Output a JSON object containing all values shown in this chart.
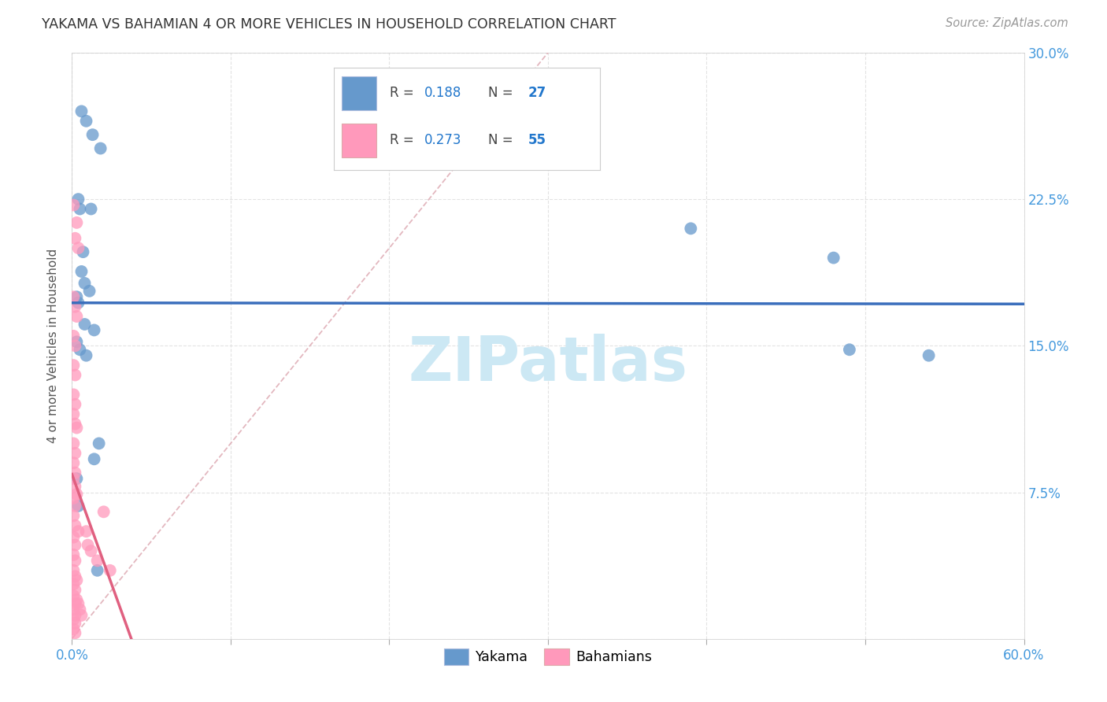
{
  "title": "YAKAMA VS BAHAMIAN 4 OR MORE VEHICLES IN HOUSEHOLD CORRELATION CHART",
  "source": "Source: ZipAtlas.com",
  "ylabel": "4 or more Vehicles in Household",
  "xlim": [
    0.0,
    0.6
  ],
  "ylim": [
    0.0,
    0.3
  ],
  "xticks": [
    0.0,
    0.1,
    0.2,
    0.3,
    0.4,
    0.5,
    0.6
  ],
  "xticklabels": [
    "0.0%",
    "",
    "",
    "",
    "",
    "",
    "60.0%"
  ],
  "yticks": [
    0.0,
    0.075,
    0.15,
    0.225,
    0.3
  ],
  "yticklabels_right": [
    "",
    "7.5%",
    "15.0%",
    "22.5%",
    "30.0%"
  ],
  "yakama_color": "#6699cc",
  "bahamian_color": "#ff99bb",
  "trendline_yakama_color": "#3a6ebc",
  "trendline_bahamian_color": "#e06080",
  "diagonal_color": "#e0b0b8",
  "background_color": "#ffffff",
  "grid_color": "#dddddd",
  "watermark": "ZIPatlas",
  "watermark_color": "#cce8f4",
  "legend_r1": "0.188",
  "legend_n1": "27",
  "legend_r2": "0.273",
  "legend_n2": "55",
  "yakama_points": [
    [
      0.006,
      0.27
    ],
    [
      0.009,
      0.265
    ],
    [
      0.013,
      0.258
    ],
    [
      0.018,
      0.251
    ],
    [
      0.004,
      0.225
    ],
    [
      0.005,
      0.22
    ],
    [
      0.007,
      0.198
    ],
    [
      0.012,
      0.22
    ],
    [
      0.006,
      0.188
    ],
    [
      0.008,
      0.182
    ],
    [
      0.011,
      0.178
    ],
    [
      0.003,
      0.175
    ],
    [
      0.004,
      0.172
    ],
    [
      0.008,
      0.161
    ],
    [
      0.014,
      0.158
    ],
    [
      0.003,
      0.152
    ],
    [
      0.005,
      0.148
    ],
    [
      0.009,
      0.145
    ],
    [
      0.017,
      0.1
    ],
    [
      0.014,
      0.092
    ],
    [
      0.003,
      0.082
    ],
    [
      0.004,
      0.068
    ],
    [
      0.016,
      0.035
    ],
    [
      0.39,
      0.21
    ],
    [
      0.48,
      0.195
    ],
    [
      0.49,
      0.148
    ],
    [
      0.54,
      0.145
    ]
  ],
  "bahamian_points": [
    [
      0.001,
      0.222
    ],
    [
      0.003,
      0.213
    ],
    [
      0.002,
      0.205
    ],
    [
      0.004,
      0.2
    ],
    [
      0.001,
      0.175
    ],
    [
      0.002,
      0.17
    ],
    [
      0.003,
      0.165
    ],
    [
      0.001,
      0.155
    ],
    [
      0.002,
      0.15
    ],
    [
      0.001,
      0.14
    ],
    [
      0.002,
      0.135
    ],
    [
      0.001,
      0.125
    ],
    [
      0.002,
      0.12
    ],
    [
      0.001,
      0.115
    ],
    [
      0.002,
      0.11
    ],
    [
      0.003,
      0.108
    ],
    [
      0.001,
      0.1
    ],
    [
      0.002,
      0.095
    ],
    [
      0.001,
      0.09
    ],
    [
      0.002,
      0.085
    ],
    [
      0.001,
      0.082
    ],
    [
      0.002,
      0.078
    ],
    [
      0.003,
      0.074
    ],
    [
      0.001,
      0.072
    ],
    [
      0.002,
      0.068
    ],
    [
      0.001,
      0.063
    ],
    [
      0.002,
      0.058
    ],
    [
      0.004,
      0.055
    ],
    [
      0.001,
      0.052
    ],
    [
      0.002,
      0.048
    ],
    [
      0.001,
      0.043
    ],
    [
      0.002,
      0.04
    ],
    [
      0.001,
      0.035
    ],
    [
      0.002,
      0.032
    ],
    [
      0.003,
      0.03
    ],
    [
      0.001,
      0.028
    ],
    [
      0.002,
      0.025
    ],
    [
      0.001,
      0.022
    ],
    [
      0.002,
      0.018
    ],
    [
      0.001,
      0.015
    ],
    [
      0.002,
      0.012
    ],
    [
      0.001,
      0.01
    ],
    [
      0.002,
      0.008
    ],
    [
      0.001,
      0.005
    ],
    [
      0.002,
      0.003
    ],
    [
      0.003,
      0.02
    ],
    [
      0.004,
      0.018
    ],
    [
      0.005,
      0.015
    ],
    [
      0.006,
      0.012
    ],
    [
      0.009,
      0.055
    ],
    [
      0.01,
      0.048
    ],
    [
      0.012,
      0.045
    ],
    [
      0.016,
      0.04
    ],
    [
      0.02,
      0.065
    ],
    [
      0.024,
      0.035
    ]
  ]
}
